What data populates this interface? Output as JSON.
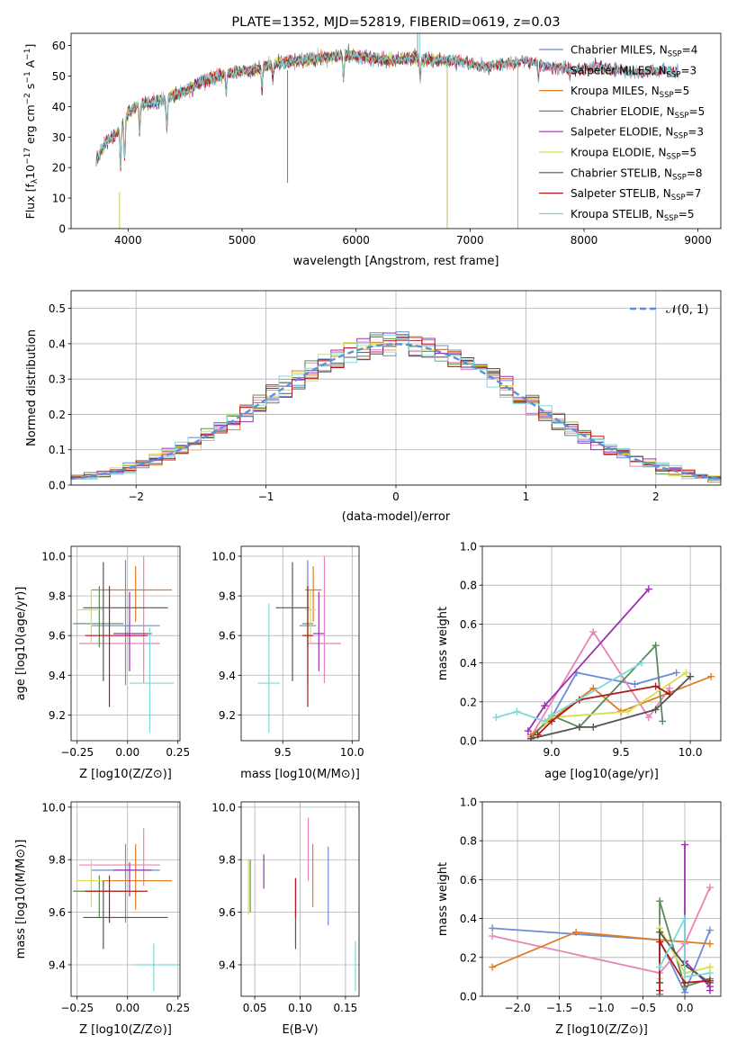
{
  "colors": {
    "Chabrier MILES": "#6b8bd8",
    "Salpeter MILES": "#e884b8",
    "Kroupa MILES": "#e07c24",
    "Chabrier ELODIE": "#5b8a5b",
    "Salpeter ELODIE": "#9b30b0",
    "Kroupa ELODIE": "#d6e04a",
    "Chabrier STELIB": "#555555",
    "Salpeter STELIB": "#b01c1c",
    "Kroupa STELIB": "#7fd8d8"
  },
  "chart_data": [
    {
      "id": "spectrum",
      "type": "line",
      "title": "PLATE=1352, MJD=52819, FIBERID=0619, z=0.03",
      "xlabel": "wavelength [Angstrom, rest frame]",
      "ylabel_parts": [
        "Flux [f",
        "λ",
        "10",
        "−17",
        " erg cm",
        "−2",
        " s",
        "−1",
        " A",
        "−1",
        "]"
      ],
      "xlim": [
        3500,
        9200
      ],
      "ylim": [
        0,
        64
      ],
      "xticks": [
        "4000",
        "5000",
        "6000",
        "7000",
        "8000",
        "9000"
      ],
      "yticks": [
        "0",
        "10",
        "20",
        "30",
        "40",
        "50",
        "60"
      ],
      "grid": false,
      "legend_position": "top-right",
      "continuum_points": [
        [
          3720,
          22
        ],
        [
          3800,
          28
        ],
        [
          3900,
          31
        ],
        [
          3980,
          36
        ],
        [
          4000,
          38
        ],
        [
          4100,
          41
        ],
        [
          4300,
          42
        ],
        [
          4500,
          45
        ],
        [
          4700,
          49
        ],
        [
          4900,
          51
        ],
        [
          5100,
          52
        ],
        [
          5300,
          54
        ],
        [
          5500,
          55
        ],
        [
          5700,
          56
        ],
        [
          5900,
          57
        ],
        [
          6100,
          56
        ],
        [
          6300,
          55
        ],
        [
          6500,
          56
        ],
        [
          6700,
          55
        ],
        [
          6900,
          55
        ],
        [
          7100,
          53
        ],
        [
          7300,
          54
        ],
        [
          7500,
          55
        ],
        [
          7700,
          53
        ],
        [
          7900,
          52
        ],
        [
          8100,
          53
        ],
        [
          8300,
          52
        ],
        [
          8500,
          51
        ],
        [
          8700,
          52
        ],
        [
          8830,
          51
        ]
      ],
      "series": [
        {
          "name": "Chabrier MILES",
          "nssp": "4",
          "xmin": 3720,
          "xmax": 8830
        },
        {
          "name": "Salpeter MILES",
          "nssp": "3",
          "xmin": 3720,
          "xmax": 8830
        },
        {
          "name": "Kroupa MILES",
          "nssp": "5",
          "xmin": 3720,
          "xmax": 7420
        },
        {
          "name": "Chabrier ELODIE",
          "nssp": "5",
          "xmin": 3720,
          "xmax": 6800
        },
        {
          "name": "Salpeter ELODIE",
          "nssp": "3",
          "xmin": 3720,
          "xmax": 6800
        },
        {
          "name": "Kroupa ELODIE",
          "nssp": "5",
          "xmin": 3720,
          "xmax": 6800
        },
        {
          "name": "Chabrier STELIB",
          "nssp": "8",
          "xmin": 3720,
          "xmax": 8830
        },
        {
          "name": "Salpeter STELIB",
          "nssp": "7",
          "xmin": 3720,
          "xmax": 8830
        },
        {
          "name": "Kroupa STELIB",
          "nssp": "5",
          "xmin": 3720,
          "xmax": 8830
        }
      ]
    },
    {
      "id": "residuals",
      "type": "line",
      "xlabel": "(data-model)/error",
      "ylabel": "Normed distribution",
      "xlim": [
        -2.5,
        2.5
      ],
      "ylim": [
        0,
        0.55
      ],
      "xticks": [
        "−2",
        "−1",
        "0",
        "1",
        "2"
      ],
      "yticks": [
        "0.0",
        "0.1",
        "0.2",
        "0.3",
        "0.4",
        "0.5"
      ],
      "grid": true,
      "legend_position": "top-right",
      "normal_label": "𝒩(0, 1)",
      "bin_width": 0.1,
      "note": "step histograms of residuals for each of the 9 fits"
    },
    {
      "id": "age_vs_Z",
      "type": "scatter",
      "xlabel": "Z [log10(Z/Z⊙)]",
      "ylabel": "age  [log10(age/yr)]",
      "xlim": [
        -0.28,
        0.26
      ],
      "ylim": [
        9.07,
        10.05
      ],
      "xticks": [
        "−0.25",
        "0.00",
        "0.25"
      ],
      "yticks": [
        "9.2",
        "9.4",
        "9.6",
        "9.8",
        "10.0"
      ],
      "grid": true,
      "points": [
        {
          "model": "Chabrier MILES",
          "x": -0.01,
          "y": 9.65,
          "xerr": [
            0.17,
            0.17
          ],
          "yerr": [
            0.3,
            0.33
          ]
        },
        {
          "model": "Salpeter MILES",
          "x": 0.08,
          "y": 9.56,
          "xerr": [
            0.32,
            0.08
          ],
          "yerr": [
            0.2,
            0.44
          ]
        },
        {
          "model": "Kroupa MILES",
          "x": 0.04,
          "y": 9.83,
          "xerr": [
            0.22,
            0.18
          ],
          "yerr": [
            0.16,
            0.12
          ]
        },
        {
          "model": "Chabrier ELODIE",
          "x": -0.14,
          "y": 9.66,
          "xerr": [
            0.13,
            0.12
          ],
          "yerr": [
            0.12,
            0.19
          ]
        },
        {
          "model": "Salpeter ELODIE",
          "x": 0.01,
          "y": 9.61,
          "xerr": [
            0.08,
            0.11
          ],
          "yerr": [
            0.19,
            0.21
          ]
        },
        {
          "model": "Kroupa ELODIE",
          "x": -0.18,
          "y": 9.73,
          "xerr": [
            0.07,
            0.06
          ],
          "yerr": [
            0.17,
            0.1
          ]
        },
        {
          "model": "Chabrier STELIB",
          "x": -0.12,
          "y": 9.74,
          "xerr": [
            0.1,
            0.32
          ],
          "yerr": [
            0.37,
            0.23
          ]
        },
        {
          "model": "Salpeter STELIB",
          "x": -0.09,
          "y": 9.6,
          "xerr": [
            0.12,
            0.19
          ],
          "yerr": [
            0.36,
            0.25
          ]
        },
        {
          "model": "Kroupa STELIB",
          "x": 0.11,
          "y": 9.36,
          "xerr": [
            0.1,
            0.12
          ],
          "yerr": [
            0.25,
            0.28
          ]
        }
      ]
    },
    {
      "id": "age_vs_mass",
      "type": "scatter",
      "xlabel": "mass [log10(M/M⊙)]",
      "xlim": [
        9.2,
        10.05
      ],
      "ylim": [
        9.07,
        10.05
      ],
      "xticks": [
        "9.5",
        "10.0"
      ],
      "yticks": [
        "9.2",
        "9.4",
        "9.6",
        "9.8",
        "10.0"
      ],
      "grid": true,
      "points": [
        {
          "model": "Chabrier MILES",
          "x": 9.68,
          "y": 9.65,
          "xerr": [
            0.06,
            0.06
          ],
          "yerr": [
            0.3,
            0.33
          ]
        },
        {
          "model": "Salpeter MILES",
          "x": 9.8,
          "y": 9.56,
          "xerr": [
            0.12,
            0.12
          ],
          "yerr": [
            0.2,
            0.44
          ]
        },
        {
          "model": "Kroupa MILES",
          "x": 9.72,
          "y": 9.83,
          "xerr": [
            0.06,
            0.06
          ],
          "yerr": [
            0.16,
            0.12
          ]
        },
        {
          "model": "Chabrier ELODIE",
          "x": 9.68,
          "y": 9.66,
          "xerr": [
            0.04,
            0.04
          ],
          "yerr": [
            0.12,
            0.19
          ]
        },
        {
          "model": "Salpeter ELODIE",
          "x": 9.76,
          "y": 9.61,
          "xerr": [
            0.04,
            0.04
          ],
          "yerr": [
            0.19,
            0.21
          ]
        },
        {
          "model": "Kroupa ELODIE",
          "x": 9.7,
          "y": 9.73,
          "xerr": [
            0.04,
            0.04
          ],
          "yerr": [
            0.17,
            0.1
          ]
        },
        {
          "model": "Chabrier STELIB",
          "x": 9.57,
          "y": 9.74,
          "xerr": [
            0.12,
            0.12
          ],
          "yerr": [
            0.37,
            0.23
          ]
        },
        {
          "model": "Salpeter STELIB",
          "x": 9.68,
          "y": 9.6,
          "xerr": [
            0.04,
            0.04
          ],
          "yerr": [
            0.36,
            0.25
          ]
        },
        {
          "model": "Kroupa STELIB",
          "x": 9.4,
          "y": 9.36,
          "xerr": [
            0.08,
            0.08
          ],
          "yerr": [
            0.25,
            0.4
          ]
        }
      ]
    },
    {
      "id": "massweight_vs_age",
      "type": "line",
      "xlabel": "age  [log10(age/yr)]",
      "ylabel": "mass weight",
      "xlim": [
        8.5,
        10.22
      ],
      "ylim": [
        0,
        1.0
      ],
      "xticks": [
        "9.0",
        "9.5",
        "10.0"
      ],
      "yticks": [
        "0.0",
        "0.2",
        "0.4",
        "0.6",
        "0.8",
        "1.0"
      ],
      "grid": true,
      "series": [
        {
          "name": "Chabrier MILES",
          "x": [
            8.85,
            9.0,
            9.18,
            9.6,
            9.9
          ],
          "y": [
            0.02,
            0.12,
            0.35,
            0.29,
            0.35
          ]
        },
        {
          "name": "Salpeter MILES",
          "x": [
            8.85,
            9.3,
            9.7,
            9.85
          ],
          "y": [
            0.02,
            0.56,
            0.12,
            0.27
          ]
        },
        {
          "name": "Kroupa MILES",
          "x": [
            8.85,
            9.3,
            9.5,
            10.15
          ],
          "y": [
            0.03,
            0.27,
            0.15,
            0.33
          ]
        },
        {
          "name": "Chabrier ELODIE",
          "x": [
            8.85,
            9.0,
            9.2,
            9.75,
            9.8
          ],
          "y": [
            0.01,
            0.13,
            0.07,
            0.49,
            0.1
          ]
        },
        {
          "name": "Salpeter ELODIE",
          "x": [
            8.83,
            8.95,
            9.7
          ],
          "y": [
            0.05,
            0.18,
            0.78
          ]
        },
        {
          "name": "Kroupa ELODIE",
          "x": [
            8.95,
            9.0,
            9.55,
            9.97
          ],
          "y": [
            0.09,
            0.12,
            0.15,
            0.35
          ]
        },
        {
          "name": "Chabrier STELIB",
          "x": [
            8.85,
            9.2,
            9.3,
            9.75,
            10.0
          ],
          "y": [
            0.01,
            0.07,
            0.07,
            0.16,
            0.33
          ]
        },
        {
          "name": "Salpeter STELIB",
          "x": [
            8.9,
            9.0,
            9.2,
            9.75,
            9.85
          ],
          "y": [
            0.03,
            0.1,
            0.21,
            0.28,
            0.24
          ]
        },
        {
          "name": "Kroupa STELIB",
          "x": [
            8.6,
            8.75,
            8.95,
            9.0,
            9.65
          ],
          "y": [
            0.12,
            0.15,
            0.1,
            0.13,
            0.4
          ]
        }
      ]
    },
    {
      "id": "mass_vs_Z",
      "type": "scatter",
      "xlabel": "Z [log10(Z/Z⊙)]",
      "ylabel": "mass [log10(M/M⊙)]",
      "xlim": [
        -0.28,
        0.26
      ],
      "ylim": [
        9.28,
        10.02
      ],
      "xticks": [
        "−0.25",
        "0.00",
        "0.25"
      ],
      "yticks": [
        "9.4",
        "9.6",
        "9.8",
        "10.0"
      ],
      "grid": true,
      "points": [
        {
          "model": "Chabrier MILES",
          "x": -0.01,
          "y": 9.76,
          "xerr": [
            0.17,
            0.17
          ],
          "yerr": [
            0.2,
            0.1
          ]
        },
        {
          "model": "Salpeter MILES",
          "x": 0.08,
          "y": 9.78,
          "xerr": [
            0.32,
            0.08
          ],
          "yerr": [
            0.08,
            0.14
          ]
        },
        {
          "model": "Kroupa MILES",
          "x": 0.04,
          "y": 9.72,
          "xerr": [
            0.22,
            0.18
          ],
          "yerr": [
            0.11,
            0.14
          ]
        },
        {
          "model": "Chabrier ELODIE",
          "x": -0.14,
          "y": 9.68,
          "xerr": [
            0.13,
            0.12
          ],
          "yerr": [
            0.1,
            0.06
          ]
        },
        {
          "model": "Salpeter ELODIE",
          "x": 0.01,
          "y": 9.76,
          "xerr": [
            0.08,
            0.11
          ],
          "yerr": [
            0.1,
            0.03
          ]
        },
        {
          "model": "Kroupa ELODIE",
          "x": -0.18,
          "y": 9.72,
          "xerr": [
            0.07,
            0.06
          ],
          "yerr": [
            0.1,
            0.08
          ]
        },
        {
          "model": "Chabrier STELIB",
          "x": -0.12,
          "y": 9.58,
          "xerr": [
            0.1,
            0.32
          ],
          "yerr": [
            0.12,
            0.14
          ]
        },
        {
          "model": "Salpeter STELIB",
          "x": -0.09,
          "y": 9.68,
          "xerr": [
            0.12,
            0.19
          ],
          "yerr": [
            0.12,
            0.06
          ]
        },
        {
          "model": "Kroupa STELIB",
          "x": 0.13,
          "y": 9.4,
          "xerr": [
            0.1,
            0.14
          ],
          "yerr": [
            0.1,
            0.08
          ]
        }
      ]
    },
    {
      "id": "mass_vs_ebv",
      "type": "scatter",
      "xlabel": "E(B-V)",
      "xlim": [
        0.035,
        0.165
      ],
      "ylim": [
        9.28,
        10.02
      ],
      "xticks": [
        "0.05",
        "0.10",
        "0.15"
      ],
      "yticks": [
        "9.4",
        "9.6",
        "9.8",
        "10.0"
      ],
      "grid": true,
      "points": [
        {
          "model": "Chabrier MILES",
          "x": 0.131,
          "y": 9.7,
          "yerr": [
            0.15,
            0.15
          ]
        },
        {
          "model": "Salpeter MILES",
          "x": 0.109,
          "y": 9.79,
          "yerr": [
            0.07,
            0.17
          ]
        },
        {
          "model": "Kroupa MILES",
          "x": 0.114,
          "y": 9.72,
          "yerr": [
            0.1,
            0.14
          ]
        },
        {
          "model": "Chabrier ELODIE",
          "x": 0.045,
          "y": 9.7,
          "yerr": [
            0.1,
            0.1
          ]
        },
        {
          "model": "Salpeter ELODIE",
          "x": 0.06,
          "y": 9.76,
          "yerr": [
            0.07,
            0.06
          ]
        },
        {
          "model": "Kroupa ELODIE",
          "x": 0.043,
          "y": 9.7,
          "yerr": [
            0.11,
            0.1
          ]
        },
        {
          "model": "Chabrier STELIB",
          "x": 0.095,
          "y": 9.57,
          "yerr": [
            0.11,
            0.16
          ]
        },
        {
          "model": "Salpeter STELIB",
          "x": 0.095,
          "y": 9.68,
          "yerr": [
            0.1,
            0.05
          ]
        },
        {
          "model": "Kroupa STELIB",
          "x": 0.161,
          "y": 9.4,
          "yerr": [
            0.1,
            0.09
          ]
        }
      ]
    },
    {
      "id": "massweight_vs_Z",
      "type": "line",
      "xlabel": "Z [log10(Z/Z⊙)]",
      "ylabel": "mass weight",
      "xlim": [
        -2.42,
        0.43
      ],
      "ylim": [
        0,
        1.0
      ],
      "xticks": [
        "−2.0",
        "−1.5",
        "−1.0",
        "−0.5",
        "0.0"
      ],
      "yticks": [
        "0.0",
        "0.2",
        "0.4",
        "0.6",
        "0.8",
        "1.0"
      ],
      "grid": true,
      "series": [
        {
          "name": "Chabrier MILES",
          "x": [
            -2.3,
            -0.3,
            0.0,
            0.3
          ],
          "y": [
            0.35,
            0.29,
            0.02,
            0.34
          ]
        },
        {
          "name": "Salpeter MILES",
          "x": [
            -2.3,
            -0.3,
            0.0,
            0.3
          ],
          "y": [
            0.31,
            0.12,
            0.27,
            0.56
          ]
        },
        {
          "name": "Kroupa MILES",
          "x": [
            -2.3,
            -1.3,
            -0.3,
            0.3
          ],
          "y": [
            0.15,
            0.33,
            0.29,
            0.27
          ]
        },
        {
          "name": "Chabrier ELODIE",
          "x": [
            -0.3,
            -0.3,
            0.0,
            0.3
          ],
          "y": [
            0.01,
            0.49,
            0.05,
            0.09
          ]
        },
        {
          "name": "Salpeter ELODIE",
          "x": [
            0.0,
            0.0,
            0.3,
            0.3
          ],
          "y": [
            0.78,
            0.18,
            0.05,
            0.03
          ]
        },
        {
          "name": "Kroupa ELODIE",
          "x": [
            -0.3,
            -0.3,
            0.0,
            0.3
          ],
          "y": [
            0.09,
            0.35,
            0.12,
            0.15
          ]
        },
        {
          "name": "Chabrier STELIB",
          "x": [
            -0.3,
            -0.3,
            0.0,
            0.3
          ],
          "y": [
            0.07,
            0.33,
            0.16,
            0.07
          ]
        },
        {
          "name": "Salpeter STELIB",
          "x": [
            -0.3,
            -0.3,
            0.0,
            0.3
          ],
          "y": [
            0.03,
            0.28,
            0.07,
            0.08
          ]
        },
        {
          "name": "Kroupa STELIB",
          "x": [
            -0.3,
            0.0,
            0.0,
            0.3
          ],
          "y": [
            0.15,
            0.4,
            0.1,
            0.12
          ]
        }
      ]
    }
  ]
}
